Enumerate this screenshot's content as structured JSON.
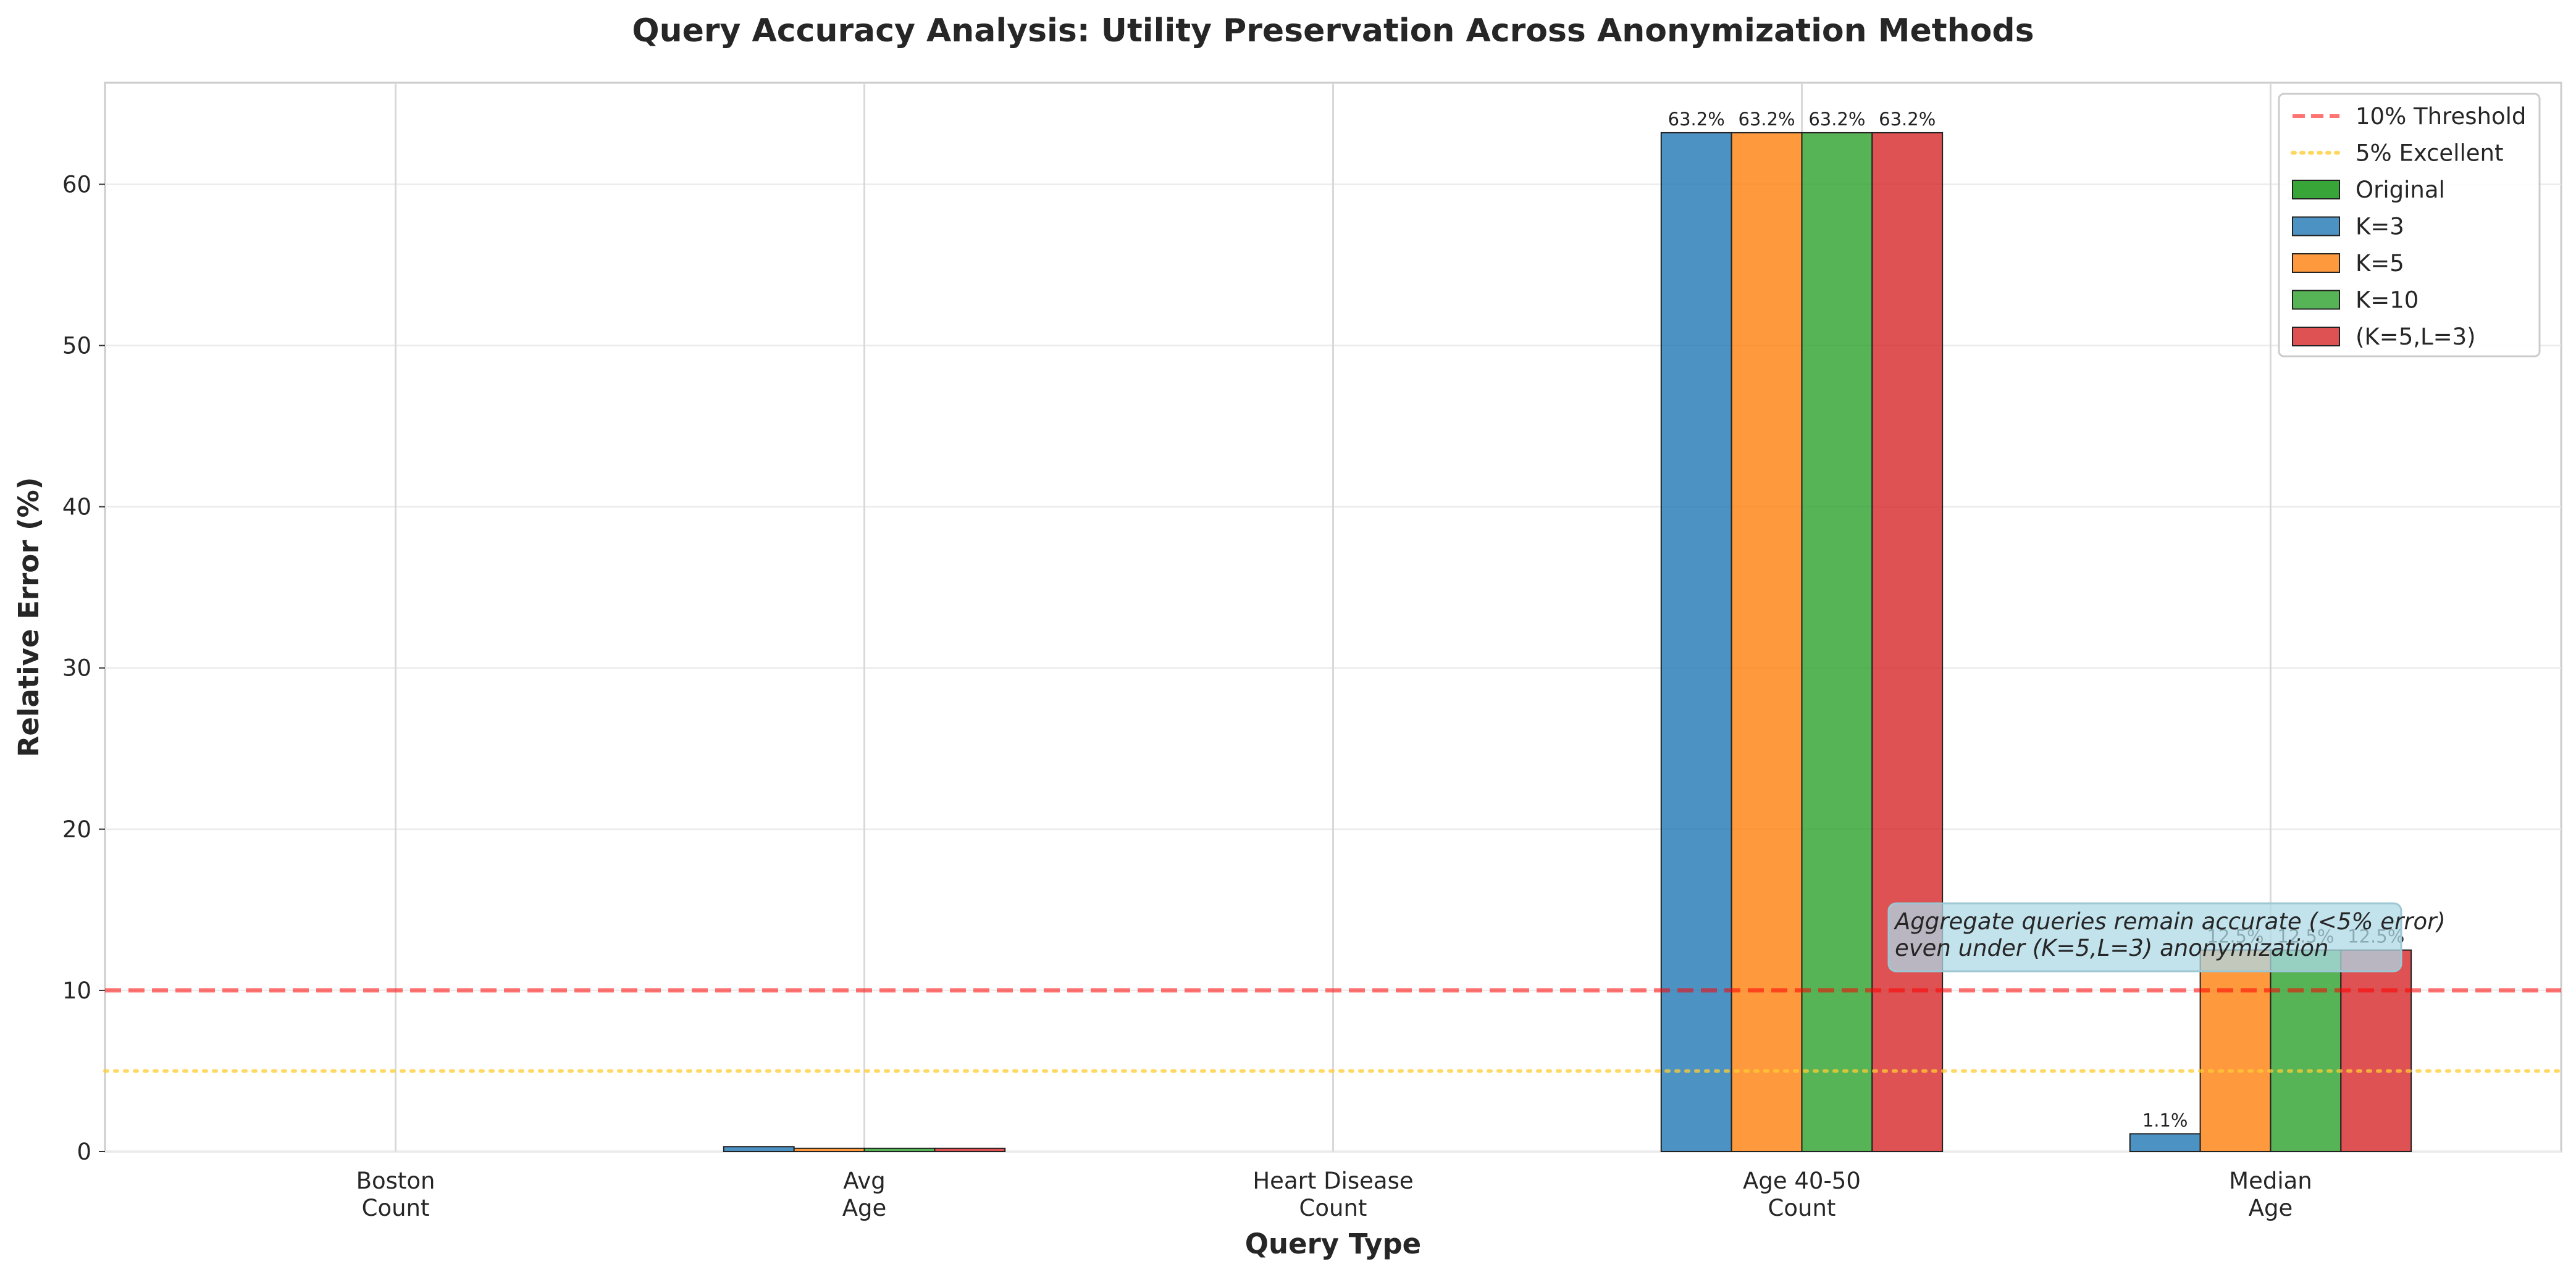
{
  "chart_data": {
    "type": "bar",
    "title": "Query Accuracy Analysis: Utility Preservation Across Anonymization Methods",
    "xlabel": "Query Type",
    "ylabel": "Relative Error (%)",
    "ylim": [
      0,
      66.3
    ],
    "yticks": [
      0,
      10,
      20,
      30,
      40,
      50,
      60
    ],
    "grid": true,
    "legend_position": "top-right",
    "categories": [
      "Boston\nCount",
      "Avg\nAge",
      "Heart Disease\nCount",
      "Age 40-50\nCount",
      "Median\nAge"
    ],
    "series": [
      {
        "name": "Original",
        "color": "#2ca02c",
        "values": [
          0,
          0,
          0,
          0,
          0
        ]
      },
      {
        "name": "K=3",
        "color": "#1f77b4",
        "values": [
          0,
          0.3,
          0,
          63.2,
          1.1
        ]
      },
      {
        "name": "K=5",
        "color": "#ff7f0e",
        "values": [
          0,
          0.2,
          0,
          63.2,
          12.5
        ]
      },
      {
        "name": "K=10",
        "color": "#2ca02c",
        "values": [
          0,
          0.2,
          0,
          63.2,
          12.5
        ]
      },
      {
        "name": "(K=5,L=3)",
        "color": "#d62728",
        "values": [
          0,
          0.2,
          0,
          63.2,
          12.5
        ]
      }
    ],
    "bar_labels": [
      {
        "category": 3,
        "series": "K=3",
        "text": "63.2%"
      },
      {
        "category": 3,
        "series": "K=5",
        "text": "63.2%"
      },
      {
        "category": 3,
        "series": "K=10",
        "text": "63.2%"
      },
      {
        "category": 3,
        "series": "(K=5,L=3)",
        "text": "63.2%"
      },
      {
        "category": 4,
        "series": "K=3",
        "text": "1.1%"
      },
      {
        "category": 4,
        "series": "K=5",
        "text": "12.5%"
      },
      {
        "category": 4,
        "series": "K=10",
        "text": "12.5%"
      },
      {
        "category": 4,
        "series": "(K=5,L=3)",
        "text": "12.5%"
      }
    ],
    "reference_lines": [
      {
        "name": "10% Threshold",
        "y": 10,
        "color": "#ff0000",
        "style": "dashed"
      },
      {
        "name": "5% Excellent",
        "y": 5,
        "color": "#ffcc33",
        "style": "dotted"
      }
    ],
    "annotation": {
      "lines": [
        "Aggregate queries remain accurate (<5% error)",
        "even under (K=5,L=3) anonymization"
      ],
      "background": "#add8e6"
    }
  }
}
